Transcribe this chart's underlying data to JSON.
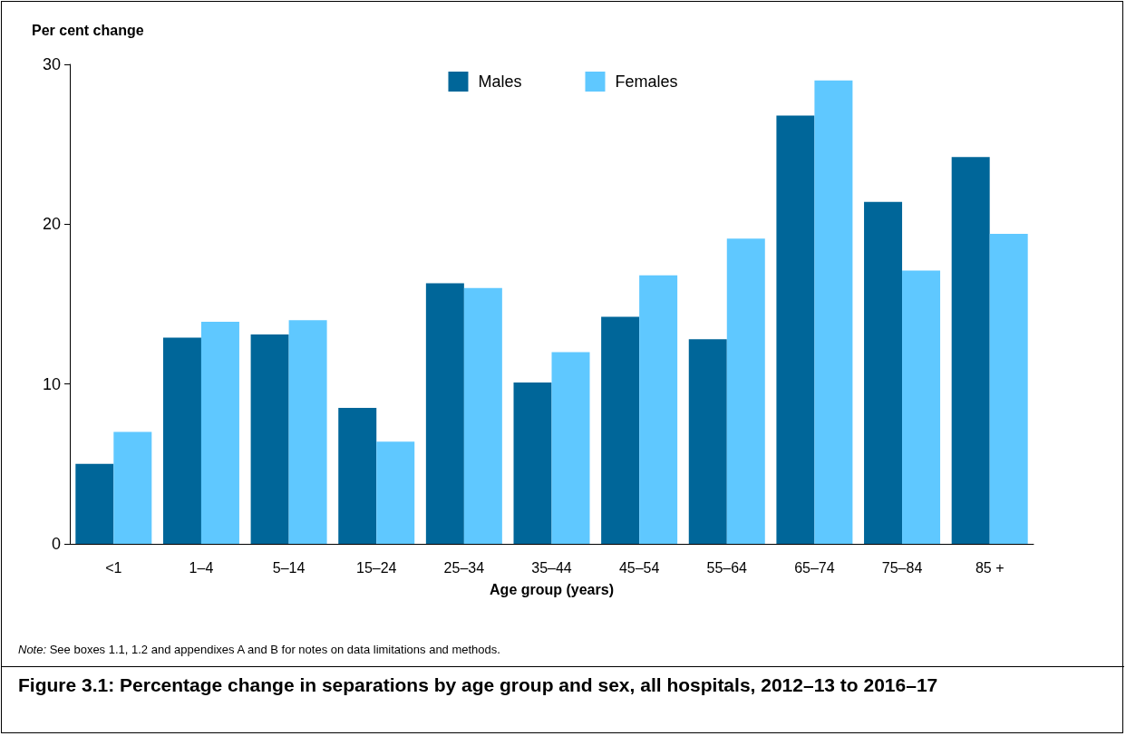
{
  "chart_data": {
    "type": "bar",
    "title": "Figure 3.1: Percentage change in separations by age group and sex, all hospitals, 2012–13 to 2016–17",
    "ylabel": "Per cent change",
    "xlabel": "Age group (years)",
    "annotations": [
      "Note: See boxes 1.1, 1.2 and appendixes A and B for notes on data limitations and methods."
    ],
    "categories": [
      "<1",
      "1–4",
      "5–14",
      "15–24",
      "25–34",
      "35–44",
      "45–54",
      "55–64",
      "65–74",
      "75–84",
      "85 +"
    ],
    "series": [
      {
        "name": "Males",
        "color": "#006699",
        "values": [
          5.0,
          12.9,
          13.1,
          8.5,
          16.3,
          10.1,
          14.2,
          12.8,
          26.8,
          21.4,
          24.2
        ]
      },
      {
        "name": "Females",
        "color": "#5fc8ff",
        "values": [
          7.0,
          13.9,
          14.0,
          6.4,
          16.0,
          12.0,
          16.8,
          19.1,
          29.0,
          17.1,
          19.4
        ]
      }
    ],
    "ylim": [
      0,
      30
    ],
    "yticks": [
      0,
      10,
      20,
      30
    ],
    "grid": false,
    "legend": "top"
  }
}
